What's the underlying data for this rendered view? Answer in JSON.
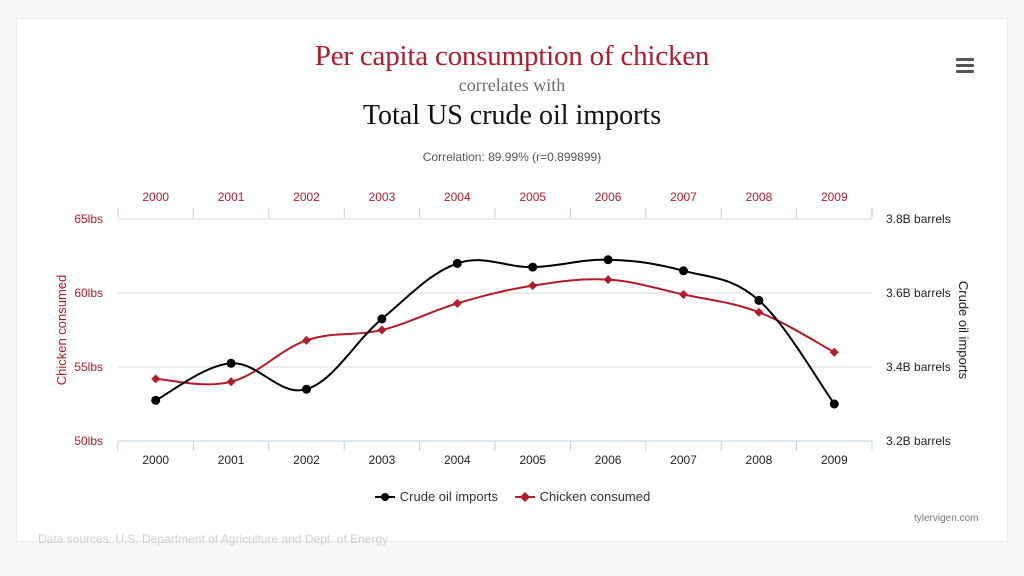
{
  "titles": {
    "main": "Per capita consumption of chicken",
    "connector": "correlates with",
    "second": "Total US crude oil imports",
    "correlation": "Correlation: 89.99% (r=0.899899)"
  },
  "credit": "tylervigen.com",
  "sources": "Data sources: U.S. Department of Agriculture and Dept. of Energy",
  "menu_icon": "hamburger-menu-icon",
  "chart_data": {
    "type": "line",
    "x": [
      "2000",
      "2001",
      "2002",
      "2003",
      "2004",
      "2005",
      "2006",
      "2007",
      "2008",
      "2009"
    ],
    "series": [
      {
        "name": "Crude oil imports",
        "axis": "right",
        "unit": "B barrels",
        "color": "#000000",
        "marker": "circle",
        "values": [
          3.31,
          3.41,
          3.34,
          3.53,
          3.68,
          3.67,
          3.69,
          3.66,
          3.58,
          3.3
        ]
      },
      {
        "name": "Chicken consumed",
        "axis": "left",
        "unit": "lbs",
        "color": "#b31b2c",
        "marker": "diamond",
        "values": [
          54.2,
          54.0,
          56.8,
          57.5,
          59.3,
          60.5,
          60.9,
          59.9,
          58.7,
          56.0
        ]
      }
    ],
    "left_axis": {
      "label": "Chicken consumed",
      "range": [
        50,
        65
      ],
      "ticks": [
        "50lbs",
        "55lbs",
        "60lbs",
        "65lbs"
      ],
      "tick_values": [
        50,
        55,
        60,
        65
      ],
      "color": "#b31b2c"
    },
    "right_axis": {
      "label": "Crude oil imports",
      "range": [
        3.2,
        3.8
      ],
      "ticks": [
        "3.2B barrels",
        "3.4B barrels",
        "3.6B barrels",
        "3.8B barrels"
      ],
      "tick_values": [
        3.2,
        3.4,
        3.6,
        3.8
      ],
      "color": "#222222"
    },
    "top_axis_color": "#b31b2c",
    "grid": true,
    "legend_position": "bottom-center"
  }
}
